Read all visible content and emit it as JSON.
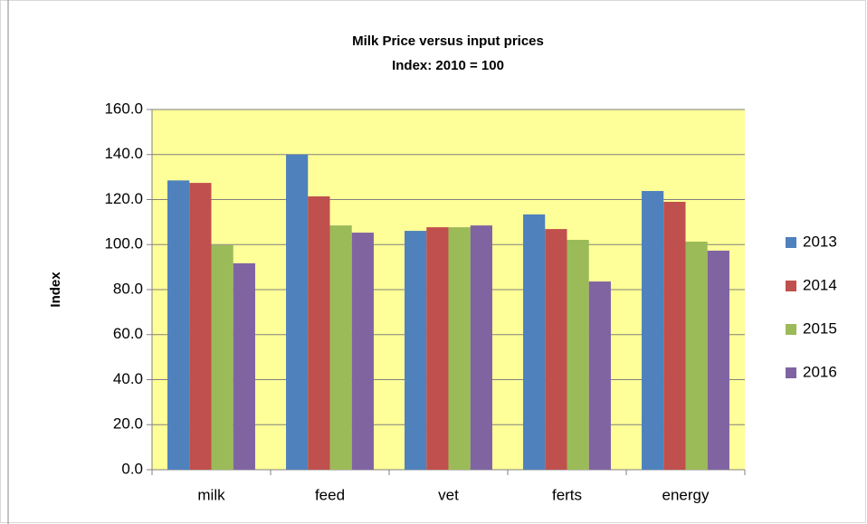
{
  "chart_data": {
    "type": "bar",
    "title": "Milk Price versus input prices",
    "subtitle": "Index: 2010 = 100",
    "y_label": "Index",
    "categories": [
      "milk",
      "feed",
      "vet",
      "ferts",
      "energy"
    ],
    "series": [
      {
        "name": "2013",
        "color": "#4f81bd",
        "values": [
          128.5,
          140,
          106.1,
          113.4,
          123.8
        ]
      },
      {
        "name": "2014",
        "color": "#c0504d",
        "values": [
          127.4,
          121.4,
          107.7,
          106.9,
          119
        ]
      },
      {
        "name": "2015",
        "color": "#9bbb59",
        "values": [
          99.7,
          108.5,
          107.7,
          102.1,
          101.3
        ]
      },
      {
        "name": "2016",
        "color": "#8064a2",
        "values": [
          91.7,
          105.3,
          108.5,
          83.6,
          97.3
        ]
      }
    ],
    "ylim": [
      0,
      160
    ],
    "yticks": [
      {
        "value": 0,
        "label": "0.0"
      },
      {
        "value": 20,
        "label": "20.0"
      },
      {
        "value": 40,
        "label": "40.0"
      },
      {
        "value": 60,
        "label": "60.0"
      },
      {
        "value": 80,
        "label": "80.0"
      },
      {
        "value": 100,
        "label": "100.0"
      },
      {
        "value": 120,
        "label": "120.0"
      },
      {
        "value": 140,
        "label": "140.0"
      },
      {
        "value": 160,
        "label": "160.0"
      }
    ],
    "grid": true,
    "plot_background": "#ffff99",
    "legend": "right"
  }
}
